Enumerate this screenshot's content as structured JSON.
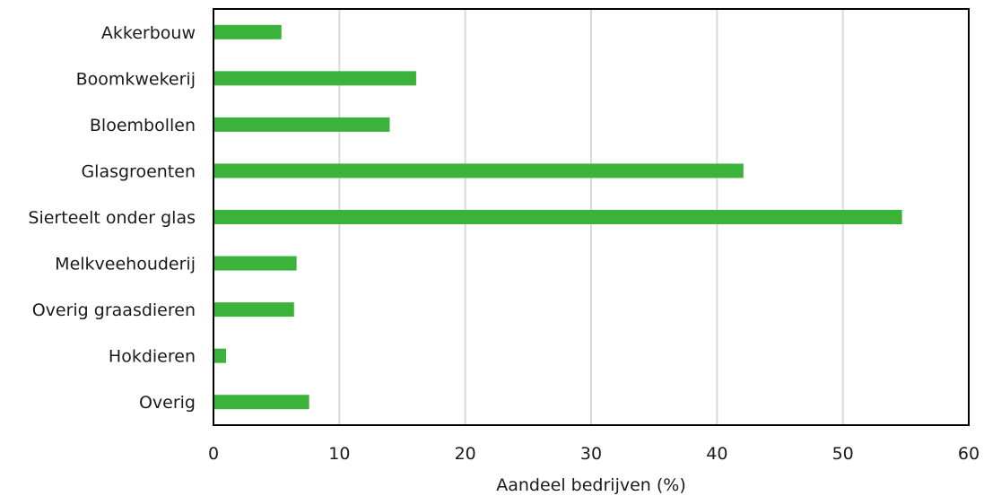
{
  "chart_data": {
    "type": "bar",
    "orientation": "horizontal",
    "categories": [
      "Akkerbouw",
      "Boomkwekerij",
      "Bloembollen",
      "Glasgroenten",
      "Sierteelt onder glas",
      "Melkveehouderij",
      "Overig graasdieren",
      "Hokdieren",
      "Overig"
    ],
    "values": [
      5.4,
      16.1,
      14.0,
      42.1,
      54.7,
      6.6,
      6.4,
      1.0,
      7.6
    ],
    "title": "",
    "xlabel": "Aandeel bedrijven (%)",
    "ylabel": "",
    "xlim": [
      0,
      60
    ],
    "xticks": [
      "0",
      "10",
      "20",
      "30",
      "40",
      "50",
      "60"
    ],
    "grid": "vertical",
    "legend": "none",
    "bar_color": "#3bb33b"
  }
}
